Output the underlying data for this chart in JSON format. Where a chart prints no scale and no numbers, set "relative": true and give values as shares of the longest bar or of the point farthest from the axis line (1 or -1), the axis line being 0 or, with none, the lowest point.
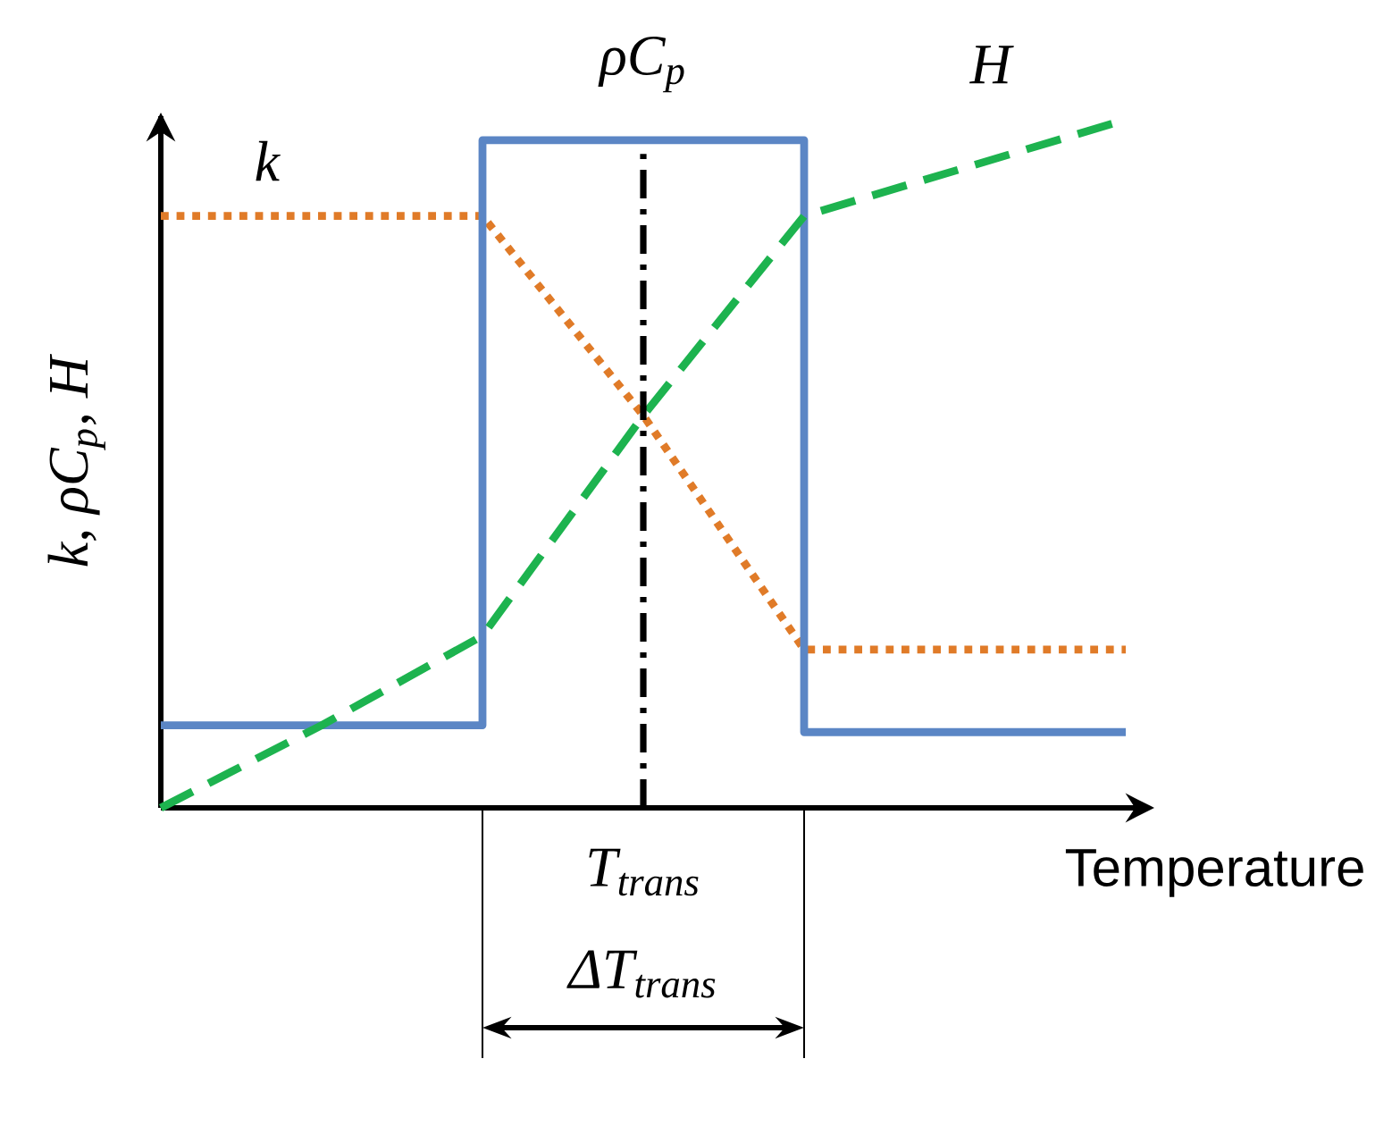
{
  "chart_data": {
    "type": "line",
    "relative": true,
    "xlabel": "Temperature",
    "ylabel": "k, ρC$_{p}$, H",
    "tick_labels": false,
    "categories": [
      null,
      null,
      null,
      null,
      null,
      null,
      null
    ],
    "series": [
      {
        "name": "k",
        "color": "#e07b28",
        "line_style": "dotted",
        "values": [
          0.86,
          0.86,
          0.86,
          0.57,
          0.23,
          0.23,
          0.23
        ]
      },
      {
        "name": "ρC$_{p}$",
        "type": "step",
        "color": "#5b86c5",
        "line_style": "solid",
        "values": [
          0.12,
          0.12,
          0.97,
          0.97,
          0.11,
          0.11,
          0.11
        ]
      },
      {
        "name": "H",
        "color": "#1db34f",
        "line_style": "dashed",
        "values": [
          0,
          0.12,
          0.25,
          0.57,
          0.86,
          0.93,
          1.0
        ]
      }
    ],
    "annotations": [
      "T$_{trans}$",
      "ΔT$_{trans}$"
    ]
  }
}
